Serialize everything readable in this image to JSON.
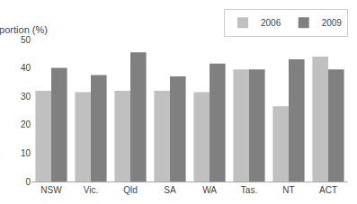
{
  "chart_data": {
    "type": "bar",
    "ylabel": "Proportion (%)",
    "categories": [
      "NSW",
      "Vic.",
      "Qld",
      "SA",
      "WA",
      "Tas.",
      "NT",
      "ACT"
    ],
    "series": [
      {
        "name": "2006",
        "color": "#c0c0c0",
        "values": [
          32,
          31.5,
          32,
          32,
          31.5,
          39.5,
          26.5,
          44
        ]
      },
      {
        "name": "2009",
        "color": "#808080",
        "values": [
          40,
          37.5,
          45.5,
          37,
          41.5,
          39.5,
          43,
          39.5
        ]
      }
    ],
    "ylim": [
      0,
      50
    ],
    "yticks": [
      0,
      10,
      20,
      30,
      40,
      50
    ],
    "grid": false,
    "legend": "upper right"
  }
}
